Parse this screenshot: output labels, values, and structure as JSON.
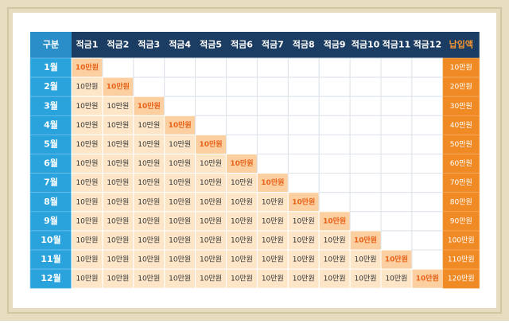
{
  "header": {
    "label": "구분",
    "columns": [
      "적금1",
      "적금2",
      "적금3",
      "적금4",
      "적금5",
      "적금6",
      "적금7",
      "적금8",
      "적금9",
      "적금10",
      "적금11",
      "적금12"
    ],
    "total": "납입액"
  },
  "rows": [
    {
      "month": "1월",
      "cells": [
        "10만원"
      ],
      "total": "10만원"
    },
    {
      "month": "2월",
      "cells": [
        "10만원",
        "10만원"
      ],
      "total": "20만원"
    },
    {
      "month": "3월",
      "cells": [
        "10만원",
        "10만원",
        "10만원"
      ],
      "total": "30만원"
    },
    {
      "month": "4월",
      "cells": [
        "10만원",
        "10만원",
        "10만원",
        "10만원"
      ],
      "total": "40만원"
    },
    {
      "month": "5월",
      "cells": [
        "10만원",
        "10만원",
        "10만원",
        "10만원",
        "10만원"
      ],
      "total": "50만원"
    },
    {
      "month": "6월",
      "cells": [
        "10만원",
        "10만원",
        "10만원",
        "10만원",
        "10만원",
        "10만원"
      ],
      "total": "60만원"
    },
    {
      "month": "7월",
      "cells": [
        "10만원",
        "10만원",
        "10만원",
        "10만원",
        "10만원",
        "10만원",
        "10만원"
      ],
      "total": "70만원"
    },
    {
      "month": "8월",
      "cells": [
        "10만원",
        "10만원",
        "10만원",
        "10만원",
        "10만원",
        "10만원",
        "10만원",
        "10만원"
      ],
      "total": "80만원"
    },
    {
      "month": "9월",
      "cells": [
        "10만원",
        "10만원",
        "10만원",
        "10만원",
        "10만원",
        "10만원",
        "10만원",
        "10만원",
        "10만원"
      ],
      "total": "90만원"
    },
    {
      "month": "10월",
      "cells": [
        "10만원",
        "10만원",
        "10만원",
        "10만원",
        "10만원",
        "10만원",
        "10만원",
        "10만원",
        "10만원",
        "10만원"
      ],
      "total": "100만원"
    },
    {
      "month": "11월",
      "cells": [
        "10만원",
        "10만원",
        "10만원",
        "10만원",
        "10만원",
        "10만원",
        "10만원",
        "10만원",
        "10만원",
        "10만원",
        "10만원"
      ],
      "total": "110만원"
    },
    {
      "month": "12월",
      "cells": [
        "10만원",
        "10만원",
        "10만원",
        "10만원",
        "10만원",
        "10만원",
        "10만원",
        "10만원",
        "10만원",
        "10만원",
        "10만원",
        "10만원"
      ],
      "total": "120만원"
    }
  ]
}
